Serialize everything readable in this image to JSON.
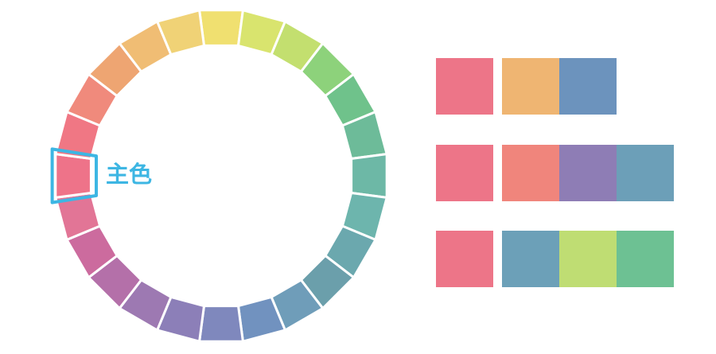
{
  "wheel": {
    "segments": [
      "#f0e070",
      "#d9e46e",
      "#c3df6f",
      "#8dd27b",
      "#6fc28b",
      "#6dbb99",
      "#6db8a6",
      "#6db5ad",
      "#6ba8ae",
      "#6b9fab",
      "#6f9db9",
      "#7192bf",
      "#7f88bd",
      "#8c7fb8",
      "#9d79b2",
      "#b470a9",
      "#cc6b9e",
      "#e27596",
      "#ee7389",
      "#f07784",
      "#f08a7c",
      "#eea572",
      "#f0bd74",
      "#f0d276"
    ],
    "main_index": 18,
    "main_label": "主色",
    "highlight_color": "#3db6e3"
  },
  "palettes": [
    [
      "#ed7588",
      "#efb572",
      "#6c93bd"
    ],
    [
      "#ed7588",
      "#f0857c",
      "#8e7db5",
      "#6c9fb8"
    ],
    [
      "#ed7588",
      "#6ca0b8",
      "#bfdd73",
      "#6dc193"
    ]
  ]
}
